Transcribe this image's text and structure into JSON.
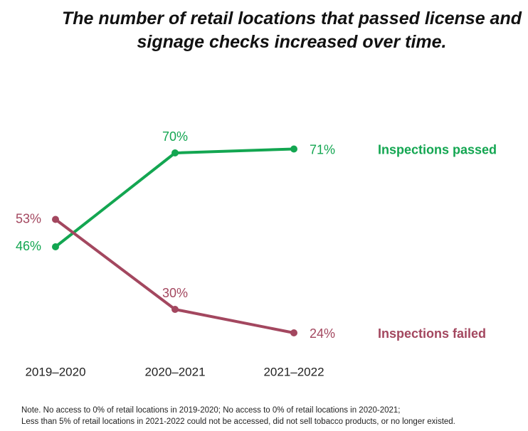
{
  "chart_data": {
    "type": "line",
    "title": "The number of retail locations that passed license and signage checks increased over time.",
    "categories": [
      "2019–2020",
      "2020–2021",
      "2021–2022"
    ],
    "series": [
      {
        "name": "Inspections passed",
        "color": "#13a651",
        "values": [
          46,
          70,
          71
        ],
        "value_labels": [
          "46%",
          "70%",
          "71%"
        ]
      },
      {
        "name": "Inspections failed",
        "color": "#a3475f",
        "values": [
          53,
          30,
          24
        ],
        "value_labels": [
          "53%",
          "30%",
          "24%"
        ]
      }
    ],
    "notes": [
      "Note. No access to 0% of retail locations in 2019-2020; No access to 0% of retail locations in 2020-2021;",
      "Less than 5% of retail locations in 2021-2022 could not be accessed, did not sell tobacco products, or no longer existed."
    ]
  }
}
